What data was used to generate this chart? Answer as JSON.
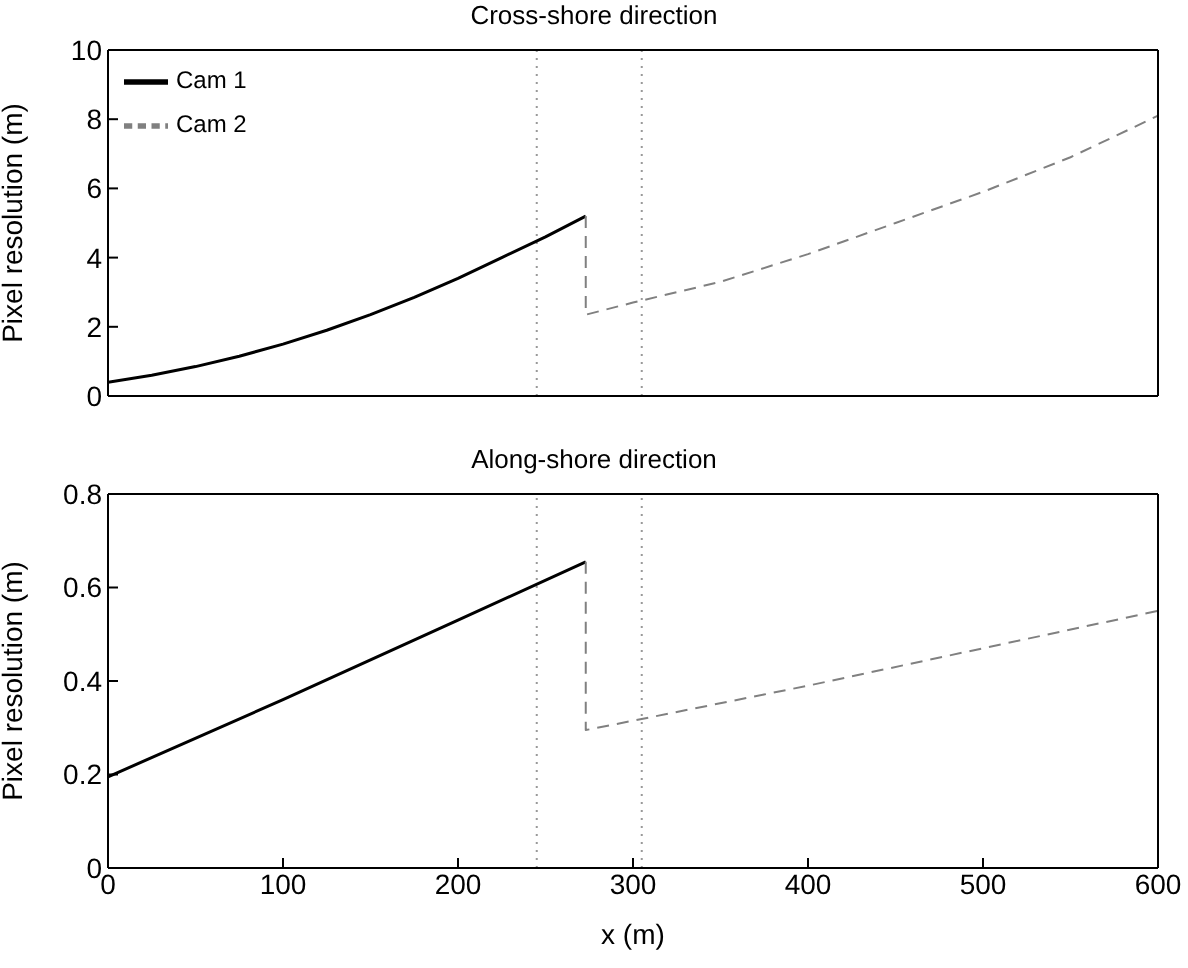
{
  "chart_data": [
    {
      "type": "line",
      "title": "Cross-shore direction",
      "ylabel": "Pixel resolution (m)",
      "xlim": [
        0,
        600
      ],
      "xticks": [
        0,
        100,
        200,
        300,
        400,
        500,
        600
      ],
      "ylim": [
        0,
        10
      ],
      "yticks": [
        0,
        2,
        4,
        6,
        8,
        10
      ],
      "tick_labels": "y",
      "grid": false,
      "legend": "top left",
      "marker": "none",
      "ref_lines": [
        {
          "axis": "x",
          "value": 245,
          "line_style": "dotted",
          "color": "#999999"
        },
        {
          "axis": "x",
          "value": 305,
          "line_style": "dotted",
          "color": "#999999"
        }
      ],
      "series": [
        {
          "name": "Cam 1",
          "color": "#000000",
          "line_style": "solid",
          "x": [
            0,
            25,
            50,
            75,
            100,
            125,
            150,
            175,
            200,
            225,
            250,
            273
          ],
          "values": [
            0.4,
            0.6,
            0.85,
            1.15,
            1.5,
            1.9,
            2.35,
            2.85,
            3.4,
            4.0,
            4.6,
            5.2
          ]
        },
        {
          "name": "Cam 2",
          "color": "#808080",
          "line_style": "dashed",
          "x": [
            273,
            273,
            300,
            350,
            400,
            450,
            500,
            550,
            600
          ],
          "values": [
            5.2,
            2.35,
            2.7,
            3.3,
            4.1,
            5.0,
            5.9,
            6.9,
            8.1
          ]
        }
      ]
    },
    {
      "type": "line",
      "title": "Along-shore direction",
      "xlabel": "x (m)",
      "ylabel": "Pixel resolution (m)",
      "xlim": [
        0,
        600
      ],
      "xticks": [
        0,
        100,
        200,
        300,
        400,
        500,
        600
      ],
      "ylim": [
        0,
        0.8
      ],
      "yticks": [
        0,
        0.2,
        0.4,
        0.6,
        0.8
      ],
      "grid": false,
      "legend": false,
      "marker": "none",
      "ref_lines": [
        {
          "axis": "x",
          "value": 245,
          "line_style": "dotted",
          "color": "#999999"
        },
        {
          "axis": "x",
          "value": 305,
          "line_style": "dotted",
          "color": "#999999"
        }
      ],
      "series": [
        {
          "color": "#000000",
          "line_style": "solid",
          "x": [
            0,
            100,
            200,
            273
          ],
          "values": [
            0.195,
            0.36,
            0.53,
            0.655
          ]
        },
        {
          "color": "#808080",
          "line_style": "dashed",
          "x": [
            273,
            273,
            300,
            400,
            500,
            600
          ],
          "values": [
            0.655,
            0.295,
            0.315,
            0.39,
            0.47,
            0.55
          ]
        }
      ]
    }
  ]
}
